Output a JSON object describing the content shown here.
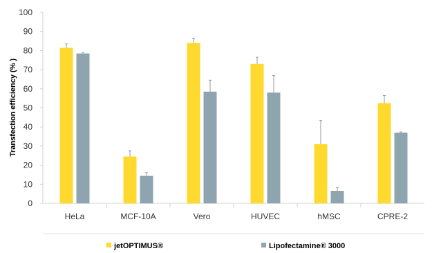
{
  "chart_data": {
    "type": "bar",
    "ylabel": "Transfection efficiency (% )",
    "ylim": [
      0,
      100
    ],
    "yticks": [
      0,
      10,
      20,
      30,
      40,
      50,
      60,
      70,
      80,
      90,
      100
    ],
    "categories": [
      "HeLa",
      "MCF-10A",
      "Vero",
      "HUVEC",
      "hMSC",
      "CPRE-2"
    ],
    "grid": false,
    "legend_position": "bottom",
    "series": [
      {
        "name": "jetOPTIMUS®",
        "color": "#FFD92E",
        "values": [
          81.5,
          24.5,
          84,
          73,
          31,
          52.5
        ],
        "errors": [
          2,
          3,
          2.5,
          3.5,
          12.5,
          4
        ]
      },
      {
        "name": "Lipofectamine® 3000",
        "color": "#8EA4AE",
        "values": [
          78.5,
          14.5,
          58.5,
          58,
          6.5,
          37
        ],
        "errors": [
          0.5,
          1.5,
          6,
          9,
          2,
          0.5
        ]
      }
    ]
  }
}
